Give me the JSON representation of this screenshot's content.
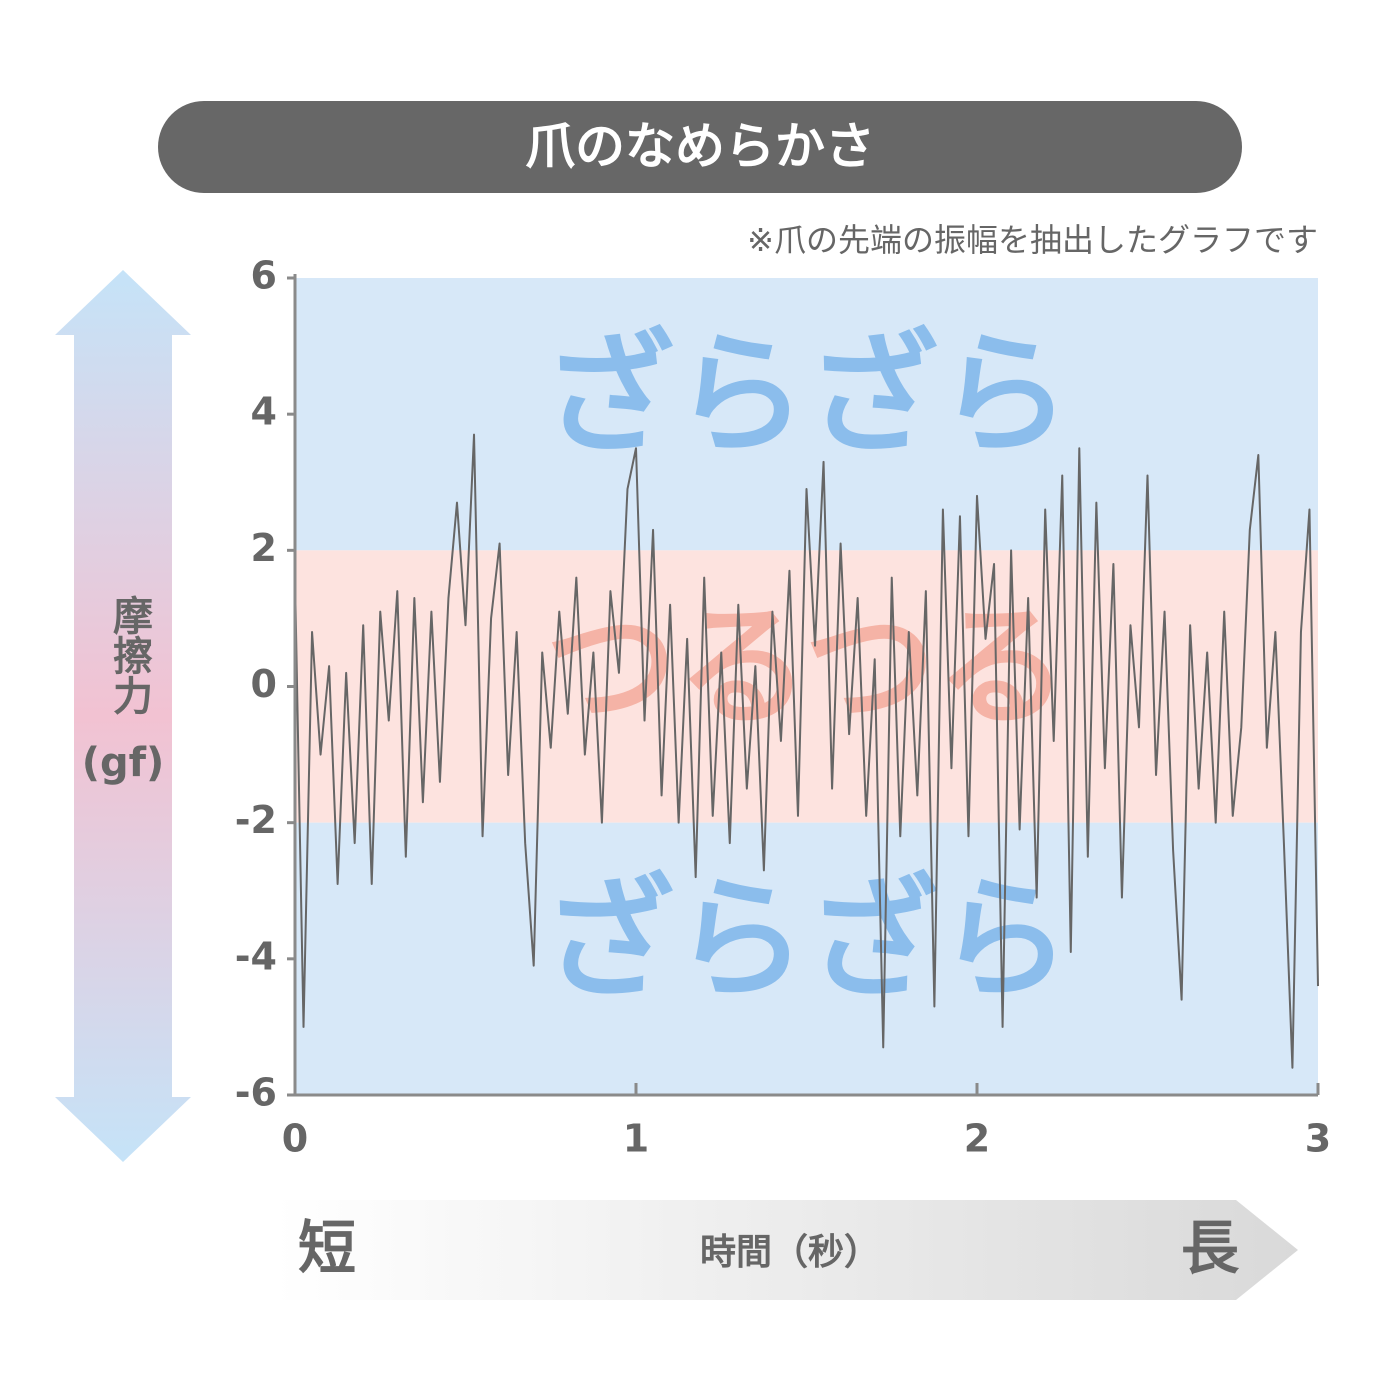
{
  "chart_data": {
    "type": "line",
    "title": "爪のなめらかさ",
    "note": "※爪の先端の振幅を抽出したグラフです",
    "y_label": {
      "name": "摩擦力",
      "unit": "(gf)"
    },
    "x_label": "時間（秒）",
    "x_axis_start": "短",
    "x_axis_end": "長",
    "xlim": [
      0,
      3
    ],
    "xticks": [
      0,
      1,
      2,
      3
    ],
    "ylim": [
      -6,
      6
    ],
    "yticks": [
      -6,
      -4,
      -2,
      0,
      2,
      4,
      6
    ],
    "bands": [
      {
        "from": 2,
        "to": 6,
        "label": "ざらざら",
        "color": "#d7e8f8",
        "label_color": "#8bbdec"
      },
      {
        "from": -2,
        "to": 2,
        "label": "つるつる",
        "color": "#fde3df",
        "label_color": "#f3a493"
      },
      {
        "from": -6,
        "to": -2,
        "label": "ざらざら",
        "color": "#d7e8f8",
        "label_color": "#8bbdec"
      }
    ],
    "x": [
      0,
      0.025,
      0.05,
      0.075,
      0.1,
      0.125,
      0.15,
      0.175,
      0.2,
      0.225,
      0.25,
      0.275,
      0.3,
      0.325,
      0.35,
      0.375,
      0.4,
      0.425,
      0.45,
      0.475,
      0.5,
      0.525,
      0.55,
      0.575,
      0.6,
      0.625,
      0.65,
      0.675,
      0.7,
      0.725,
      0.75,
      0.775,
      0.8,
      0.825,
      0.85,
      0.875,
      0.9,
      0.925,
      0.95,
      0.975,
      1,
      1.025,
      1.05,
      1.075,
      1.1,
      1.125,
      1.15,
      1.175,
      1.2,
      1.225,
      1.25,
      1.275,
      1.3,
      1.325,
      1.35,
      1.375,
      1.4,
      1.425,
      1.45,
      1.475,
      1.5,
      1.525,
      1.55,
      1.575,
      1.6,
      1.625,
      1.65,
      1.675,
      1.7,
      1.725,
      1.75,
      1.775,
      1.8,
      1.825,
      1.85,
      1.875,
      1.9,
      1.925,
      1.95,
      1.975,
      2,
      2.025,
      2.05,
      2.075,
      2.1,
      2.125,
      2.15,
      2.175,
      2.2,
      2.225,
      2.25,
      2.275,
      2.3,
      2.325,
      2.35,
      2.375,
      2.4,
      2.425,
      2.45,
      2.475,
      2.5,
      2.525,
      2.55,
      2.575,
      2.6,
      2.625,
      2.65,
      2.675,
      2.7,
      2.725,
      2.75,
      2.775,
      2.8,
      2.825,
      2.85,
      2.875,
      2.9,
      2.925,
      2.95,
      2.975,
      3
    ],
    "series": [
      {
        "color": "#666666",
        "values": [
          1.6,
          -5.0,
          0.8,
          -1.0,
          0.3,
          -2.9,
          0.2,
          -2.3,
          0.9,
          -2.9,
          1.1,
          -0.5,
          1.4,
          -2.5,
          1.3,
          -1.7,
          1.1,
          -1.4,
          1.3,
          2.7,
          0.9,
          3.7,
          -2.2,
          1.0,
          2.1,
          -1.3,
          0.8,
          -2.3,
          -4.1,
          0.5,
          -0.9,
          1.1,
          -0.4,
          1.6,
          -1.0,
          0.5,
          -2.0,
          1.4,
          0.2,
          2.9,
          3.5,
          -0.5,
          2.3,
          -1.6,
          1.2,
          -2.0,
          0.7,
          -2.8,
          1.6,
          -1.9,
          0.5,
          -2.3,
          1.2,
          -1.5,
          0.3,
          -2.7,
          1.1,
          -0.8,
          1.7,
          -1.9,
          2.9,
          0.6,
          3.3,
          -1.5,
          2.1,
          -0.7,
          1.3,
          -1.9,
          0.4,
          -5.3,
          1.6,
          -2.2,
          0.8,
          -1.6,
          1.4,
          -4.7,
          2.6,
          -1.2,
          2.5,
          -2.2,
          2.8,
          0.7,
          1.8,
          -5.0,
          2.0,
          -2.1,
          1.3,
          -3.1,
          2.6,
          -0.8,
          3.1,
          -3.9,
          3.5,
          -2.5,
          2.7,
          -1.2,
          1.8,
          -3.1,
          0.9,
          -0.6,
          3.1,
          -1.3,
          1.1,
          -2.4,
          -4.6,
          0.9,
          -1.5,
          0.5,
          -2.0,
          1.1,
          -1.9,
          -0.6,
          2.3,
          3.4,
          -0.9,
          0.8,
          -2.3,
          -5.6,
          0.8,
          2.6,
          -4.4
        ]
      }
    ]
  }
}
